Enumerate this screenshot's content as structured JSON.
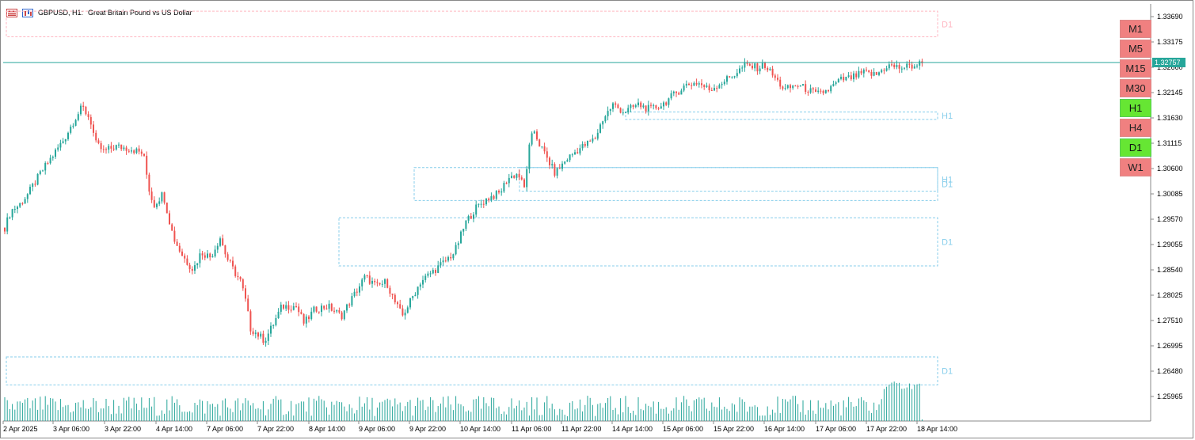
{
  "header": {
    "symbol_title": "GBPUSD, H1:",
    "description": "Great Britain Pound vs US Dollar"
  },
  "colors": {
    "bull": "#26a69a",
    "bear": "#ef5350",
    "volume": "#26a69a",
    "bid_line": "#26a69a",
    "zone_blue": "#87ceeb",
    "zone_red": "#ffb6c1"
  },
  "timeframes": [
    {
      "label": "M1",
      "active": false
    },
    {
      "label": "M5",
      "active": false
    },
    {
      "label": "M15",
      "active": false
    },
    {
      "label": "M30",
      "active": false
    },
    {
      "label": "H1",
      "active": true
    },
    {
      "label": "H4",
      "active": false
    },
    {
      "label": "D1",
      "active": true
    },
    {
      "label": "W1",
      "active": false
    }
  ],
  "chart_data": {
    "type": "candlestick",
    "symbol": "GBPUSD",
    "timeframe": "H1",
    "y_ticks": [
      "1.33690",
      "1.33175",
      "1.32660",
      "1.32145",
      "1.31630",
      "1.31115",
      "1.30600",
      "1.30085",
      "1.29570",
      "1.29055",
      "1.28540",
      "1.28025",
      "1.27510",
      "1.26995",
      "1.26480",
      "1.25965"
    ],
    "ylim": [
      1.256,
      1.34
    ],
    "x_ticks": [
      "2 Apr 2025",
      "3 Apr 06:00",
      "3 Apr 22:00",
      "4 Apr 14:00",
      "7 Apr 06:00",
      "7 Apr 22:00",
      "8 Apr 14:00",
      "9 Apr 06:00",
      "9 Apr 22:00",
      "10 Apr 14:00",
      "11 Apr 06:00",
      "11 Apr 22:00",
      "14 Apr 14:00",
      "15 Apr 06:00",
      "15 Apr 22:00",
      "16 Apr 14:00",
      "17 Apr 06:00",
      "17 Apr 22:00",
      "18 Apr 14:00"
    ],
    "current_price": "1.32757",
    "close_path": [
      [
        0,
        1.294
      ],
      [
        8,
        1.2975
      ],
      [
        18,
        1.2985
      ],
      [
        30,
        1.301
      ],
      [
        45,
        1.305
      ],
      [
        60,
        1.3085
      ],
      [
        75,
        1.312
      ],
      [
        88,
        1.316
      ],
      [
        98,
        1.3185
      ],
      [
        108,
        1.316
      ],
      [
        115,
        1.311
      ],
      [
        125,
        1.3095
      ],
      [
        140,
        1.3105
      ],
      [
        160,
        1.31
      ],
      [
        175,
        1.309
      ],
      [
        182,
        1.302
      ],
      [
        188,
        1.2985
      ],
      [
        200,
        1.301
      ],
      [
        207,
        1.296
      ],
      [
        213,
        1.292
      ],
      [
        222,
        1.289
      ],
      [
        230,
        1.287
      ],
      [
        238,
        1.2855
      ],
      [
        248,
        1.289
      ],
      [
        260,
        1.288
      ],
      [
        272,
        1.292
      ],
      [
        280,
        1.288
      ],
      [
        290,
        1.285
      ],
      [
        298,
        1.283
      ],
      [
        305,
        1.2785
      ],
      [
        310,
        1.2735
      ],
      [
        318,
        1.2725
      ],
      [
        328,
        1.271
      ],
      [
        338,
        1.274
      ],
      [
        350,
        1.278
      ],
      [
        368,
        1.278
      ],
      [
        378,
        1.2745
      ],
      [
        392,
        1.2775
      ],
      [
        408,
        1.278
      ],
      [
        425,
        1.276
      ],
      [
        440,
        1.28
      ],
      [
        455,
        1.284
      ],
      [
        470,
        1.282
      ],
      [
        482,
        1.283
      ],
      [
        492,
        1.279
      ],
      [
        502,
        1.276
      ],
      [
        512,
        1.279
      ],
      [
        525,
        1.283
      ],
      [
        540,
        1.285
      ],
      [
        555,
        1.287
      ],
      [
        568,
        1.289
      ],
      [
        582,
        1.295
      ],
      [
        595,
        1.298
      ],
      [
        610,
        1.3
      ],
      [
        625,
        1.301
      ],
      [
        635,
        1.304
      ],
      [
        648,
        1.305
      ],
      [
        656,
        1.302
      ],
      [
        662,
        1.31
      ],
      [
        668,
        1.314
      ],
      [
        675,
        1.311
      ],
      [
        685,
        1.308
      ],
      [
        695,
        1.305
      ],
      [
        710,
        1.308
      ],
      [
        725,
        1.31
      ],
      [
        745,
        1.312
      ],
      [
        755,
        1.316
      ],
      [
        768,
        1.319
      ],
      [
        782,
        1.3175
      ],
      [
        800,
        1.319
      ],
      [
        815,
        1.318
      ],
      [
        830,
        1.319
      ],
      [
        845,
        1.321
      ],
      [
        860,
        1.323
      ],
      [
        875,
        1.3235
      ],
      [
        890,
        1.322
      ],
      [
        905,
        1.3235
      ],
      [
        920,
        1.325
      ],
      [
        935,
        1.327
      ],
      [
        950,
        1.3265
      ],
      [
        960,
        1.327
      ],
      [
        972,
        1.3245
      ],
      [
        985,
        1.322
      ],
      [
        1000,
        1.323
      ],
      [
        1015,
        1.322
      ],
      [
        1025,
        1.321
      ],
      [
        1040,
        1.322
      ],
      [
        1055,
        1.324
      ],
      [
        1070,
        1.3245
      ],
      [
        1085,
        1.3255
      ],
      [
        1100,
        1.325
      ],
      [
        1115,
        1.327
      ],
      [
        1130,
        1.3265
      ],
      [
        1145,
        1.3268
      ],
      [
        1160,
        1.3275
      ]
    ],
    "zones": [
      {
        "label": "D1",
        "kind": "supply",
        "top": 1.338,
        "bottom": 1.3328,
        "x_from": 0,
        "x_to": 1176
      },
      {
        "label": "H1",
        "kind": "demand",
        "top": 1.3175,
        "bottom": 1.316,
        "x_from": 782,
        "x_to": 1176
      },
      {
        "label": "H1",
        "kind": "demand",
        "top": 1.3062,
        "bottom": 1.3014,
        "x_from": 648,
        "x_to": 1176
      },
      {
        "label": "D1",
        "kind": "demand",
        "top": 1.3062,
        "bottom": 1.2995,
        "x_from": 515,
        "x_to": 1176
      },
      {
        "label": "D1",
        "kind": "demand",
        "top": 1.296,
        "bottom": 1.2862,
        "x_from": 420,
        "x_to": 1176
      },
      {
        "label": "D1",
        "kind": "demand",
        "top": 1.2677,
        "bottom": 1.262,
        "x_from": 0,
        "x_to": 1176
      }
    ]
  }
}
